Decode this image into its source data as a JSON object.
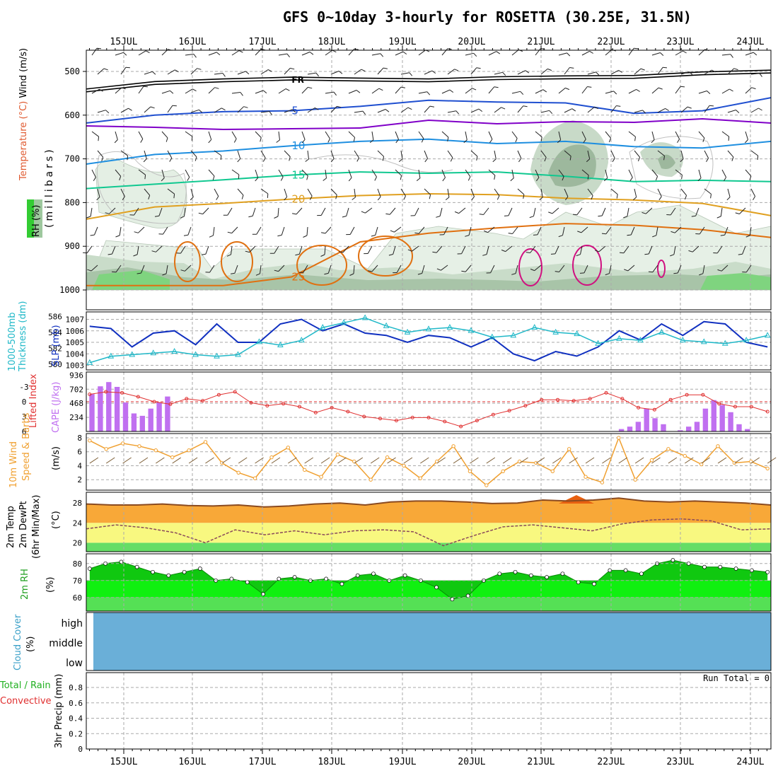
{
  "title": "GFS 0~10day 3-hourly for ROSETTA (30.25E, 31.5N)",
  "dates": [
    "15JUL",
    "16JUL",
    "17JUL",
    "18JUL",
    "19JUL",
    "20JUL",
    "21JUL",
    "22JUL",
    "23JUL",
    "24JUL"
  ],
  "labels": {
    "wind": "Wind (m/s)",
    "temperature": "Temperature (°C)",
    "rh": "RH (%)",
    "millibars": "(millibars)",
    "thickness": "1000-500mb Thickness (dm)",
    "slp": "SLP (mb)",
    "lifted": "Lifted Index",
    "cape": "CAPE (J/kg)",
    "wind10a": "10m Wind",
    "wind10b": "Speed & Barbs",
    "wind10c": "(m/s)",
    "temp2a": "2m Temp",
    "temp2b": "2m DewPt",
    "temp2c": "(6hr Min/Max)",
    "temp2d": "(°C)",
    "rh2": "2m RH",
    "rh2u": "(%)",
    "cloud": "Cloud Cover",
    "cloudu": "(%)",
    "precip1": "3hr Precip (mm)",
    "precip2": "Total / Rain",
    "precip3": "Convective",
    "run_total": "Run Total = 0",
    "FR": "FR"
  },
  "colors": {
    "grid": "#aaaaaa",
    "purple": "#8000c8",
    "blue5": "#1f4fd0",
    "blue10": "#1f8fe0",
    "teal15": "#10c890",
    "orange20": "#e0a020",
    "orange25": "#e07010",
    "magenta30": "#d01080",
    "slp": "#1030c0",
    "thickness": "#20b8c8",
    "lifted": "#e03030",
    "cape": "#c070f0",
    "wind10": "#f0a030",
    "cloud": "#6aafd8",
    "rh_fill": "#00d000"
  },
  "chart_data": [
    {
      "type": "line",
      "panel": "upper-air",
      "ylabel": "millibars",
      "yticks": [
        500,
        600,
        700,
        800,
        900,
        1000
      ],
      "contours": [
        {
          "name": "FR",
          "pressure": [
            545,
            528,
            522,
            518,
            520,
            522,
            517,
            515,
            514,
            506,
            502
          ]
        },
        {
          "name": "5",
          "pressure": [
            618,
            600,
            592,
            590,
            580,
            566,
            570,
            572,
            596,
            590,
            560
          ]
        },
        {
          "name": "10",
          "pressure": [
            712,
            690,
            682,
            670,
            660,
            655,
            665,
            660,
            672,
            675,
            660
          ]
        },
        {
          "name": "15",
          "pressure": [
            768,
            758,
            748,
            737,
            730,
            733,
            730,
            740,
            752,
            749,
            752
          ]
        },
        {
          "name": "20",
          "pressure": [
            838,
            810,
            802,
            792,
            784,
            780,
            782,
            790,
            794,
            802,
            830
          ]
        },
        {
          "name": "25",
          "pressure": [
            990,
            990,
            990,
            970,
            890,
            870,
            858,
            848,
            852,
            862,
            880
          ]
        }
      ]
    },
    {
      "type": "line",
      "panel": "slp-thickness",
      "series": [
        {
          "name": "SLP (mb)",
          "yticks": [
            1003,
            1004,
            1005,
            1006,
            1007
          ],
          "values": [
            1006.4,
            1006.2,
            1004.6,
            1005.8,
            1006.0,
            1004.8,
            1006.6,
            1005.0,
            1005.0,
            1006.6,
            1007.0,
            1006.0,
            1006.6,
            1005.8,
            1005.6,
            1005.0,
            1005.6,
            1005.4,
            1004.6,
            1005.4,
            1004.0,
            1003.4,
            1004.2,
            1003.8,
            1004.6,
            1006.0,
            1005.2,
            1006.6,
            1005.6,
            1006.8,
            1006.6,
            1005.0,
            1004.6
          ]
        },
        {
          "name": "1000-500mb Thickness (dm)",
          "yticks": [
            580,
            582,
            584,
            586
          ],
          "values": [
            580.2,
            581.0,
            581.2,
            581.4,
            581.6,
            581.2,
            581.0,
            581.2,
            582.8,
            582.4,
            583.0,
            584.6,
            585.2,
            585.8,
            584.8,
            584.0,
            584.4,
            584.6,
            584.2,
            583.4,
            583.6,
            584.6,
            584.0,
            583.8,
            582.6,
            583.2,
            583.0,
            584.0,
            583.0,
            582.8,
            582.6,
            583.0,
            583.6
          ]
        }
      ]
    },
    {
      "type": "bar",
      "panel": "cape-lifted",
      "series": [
        {
          "name": "CAPE (J/kg)",
          "yticks": [
            234,
            468,
            702,
            936
          ],
          "values": [
            620,
            750,
            820,
            740,
            480,
            300,
            260,
            380,
            480,
            580,
            0,
            0,
            0,
            0,
            0,
            0,
            0,
            0,
            0,
            0,
            0,
            0,
            0,
            0,
            0,
            0,
            0,
            0,
            0,
            0,
            0,
            0,
            0,
            0,
            0,
            0,
            0,
            0,
            0,
            0,
            0,
            0,
            0,
            0,
            0,
            0,
            0,
            0,
            0,
            0,
            0,
            0,
            0,
            0,
            0,
            0,
            0,
            0,
            0,
            0,
            0,
            0,
            0,
            40,
            80,
            160,
            380,
            220,
            120,
            0,
            20,
            80,
            160,
            380,
            520,
            440,
            320,
            120,
            40,
            0,
            0,
            30,
            0,
            0,
            0,
            0,
            0,
            0,
            0,
            0,
            0,
            0,
            0,
            0,
            0,
            0,
            0,
            0,
            0,
            0,
            0,
            0,
            0,
            0,
            0,
            0,
            0,
            0
          ]
        },
        {
          "name": "Lifted Index",
          "yticks": [
            -3,
            0,
            3,
            6
          ],
          "values": [
            -1.5,
            -2.0,
            -1.8,
            -1.0,
            0.0,
            0.5,
            -0.6,
            -0.2,
            -1.4,
            -2.0,
            0.2,
            0.8,
            0.4,
            1.0,
            2.2,
            1.2,
            2.0,
            3.0,
            3.4,
            3.8,
            3.2,
            3.2,
            4.0,
            5.0,
            3.8,
            2.6,
            1.8,
            0.8,
            -0.4,
            -0.4,
            -0.2,
            -0.6,
            -1.8,
            -0.6,
            1.2,
            1.6,
            -0.4,
            -1.4,
            -1.4,
            0.4,
            1.0,
            1.0,
            2.0
          ]
        }
      ]
    },
    {
      "type": "line",
      "panel": "10m-wind",
      "series": [
        {
          "name": "10m Wind Speed (m/s)",
          "yticks": [
            2,
            4,
            6,
            8
          ],
          "values": [
            7.6,
            6.4,
            7.2,
            6.8,
            6.2,
            5.2,
            6.2,
            7.4,
            4.4,
            3.0,
            2.2,
            5.2,
            6.6,
            3.4,
            2.4,
            5.6,
            4.6,
            2.0,
            5.2,
            4.0,
            2.2,
            4.6,
            6.8,
            3.2,
            1.2,
            3.2,
            4.6,
            4.4,
            3.2,
            6.4,
            2.4,
            1.6,
            8.0,
            2.0,
            4.8,
            6.4,
            5.4,
            4.2,
            6.8,
            4.4,
            4.6,
            3.6
          ]
        }
      ]
    },
    {
      "type": "area",
      "panel": "2m-temp",
      "series": [
        {
          "name": "2m Temp (°C)",
          "yticks": [
            20,
            24,
            28
          ],
          "values": [
            27.8,
            27.6,
            27.6,
            27.8,
            27.5,
            27.4,
            27.6,
            27.2,
            27.4,
            27.8,
            28.0,
            27.6,
            28.2,
            28.4,
            28.4,
            28.2,
            27.9,
            28.0,
            28.6,
            28.4,
            28.6,
            29.0,
            28.4,
            28.2,
            28.4,
            28.2,
            28.0,
            27.6
          ]
        },
        {
          "name": "2m DewPt (°C)",
          "values": [
            22.8,
            23.6,
            23.0,
            22.0,
            20.0,
            22.6,
            21.6,
            22.4,
            21.6,
            22.4,
            22.6,
            22.2,
            19.4,
            21.4,
            23.2,
            23.6,
            23.0,
            22.4,
            23.8,
            24.6,
            24.8,
            24.4,
            22.6,
            22.8
          ]
        }
      ]
    },
    {
      "type": "area",
      "panel": "2m-rh",
      "series": [
        {
          "name": "2m RH (%)",
          "yticks": [
            60,
            70,
            80
          ],
          "values": [
            77,
            80,
            81,
            78,
            75,
            73,
            75,
            77,
            70,
            71,
            69,
            62,
            71,
            72,
            70,
            71,
            68,
            73,
            74,
            70,
            73,
            70,
            66,
            59,
            61,
            70,
            74,
            75,
            73,
            72,
            74,
            69,
            68,
            76,
            76,
            74,
            80,
            82,
            80,
            78,
            78,
            77,
            76,
            75
          ]
        }
      ]
    },
    {
      "type": "table",
      "panel": "cloud-cover",
      "levels": [
        "high",
        "middle",
        "low"
      ]
    },
    {
      "type": "bar",
      "panel": "precip",
      "yticks": [
        0,
        0.2,
        0.4,
        0.6,
        0.8
      ],
      "values": []
    }
  ]
}
